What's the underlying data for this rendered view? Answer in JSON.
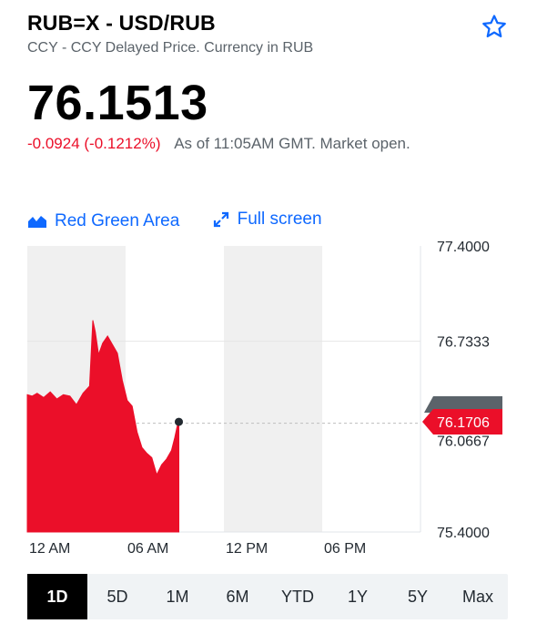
{
  "header": {
    "symbol_title": "RUB=X - USD/RUB",
    "subtitle": "CCY - CCY Delayed Price. Currency in RUB",
    "watchlist_icon": "star-icon"
  },
  "quote": {
    "price": "76.1513",
    "change": "-0.0924 (-0.1212%)",
    "as_of": "As of 11:05AM GMT. Market open."
  },
  "controls": {
    "chart_type_label": "Red Green Area",
    "chart_type_icon": "area-chart-icon",
    "fullscreen_label": "Full screen",
    "fullscreen_icon": "expand-icon"
  },
  "colors": {
    "accent": "#0f69ff",
    "negative": "#eb0f29",
    "area_fill": "#eb0f29",
    "price_tag": "#eb0f29"
  },
  "chart_data": {
    "type": "area",
    "x_tick_labels": [
      "12 AM",
      "06 AM",
      "12 PM",
      "06 PM"
    ],
    "y_tick_labels": [
      "77.4000",
      "76.7333",
      "75.4000"
    ],
    "ylim": [
      75.4,
      77.4
    ],
    "xlim_hours": [
      0,
      24
    ],
    "hidden_tick_label": "76.0667",
    "current_value_label": "76.1706",
    "previous_close": 76.16,
    "series": [
      {
        "x": [
          0.0,
          0.3,
          0.6,
          1.0,
          1.4,
          1.8,
          2.2,
          2.6,
          3.0,
          3.4,
          3.8,
          4.0,
          4.15,
          4.35,
          4.6,
          4.9,
          5.2,
          5.5,
          5.8,
          6.1,
          6.4,
          6.7,
          7.0,
          7.3,
          7.6,
          7.9,
          8.2,
          8.5,
          8.8,
          9.0,
          9.15,
          9.25
        ],
        "values": [
          76.36,
          76.35,
          76.37,
          76.34,
          76.38,
          76.33,
          76.36,
          76.35,
          76.29,
          76.37,
          76.42,
          76.88,
          76.8,
          76.64,
          76.72,
          76.77,
          76.71,
          76.65,
          76.46,
          76.32,
          76.28,
          76.1,
          75.99,
          75.95,
          75.92,
          75.8,
          75.87,
          75.91,
          75.97,
          76.06,
          76.14,
          76.17
        ]
      }
    ]
  },
  "range_tabs": [
    {
      "label": "1D",
      "active": true
    },
    {
      "label": "5D",
      "active": false
    },
    {
      "label": "1M",
      "active": false
    },
    {
      "label": "6M",
      "active": false
    },
    {
      "label": "YTD",
      "active": false
    },
    {
      "label": "1Y",
      "active": false
    },
    {
      "label": "5Y",
      "active": false
    },
    {
      "label": "Max",
      "active": false
    }
  ]
}
